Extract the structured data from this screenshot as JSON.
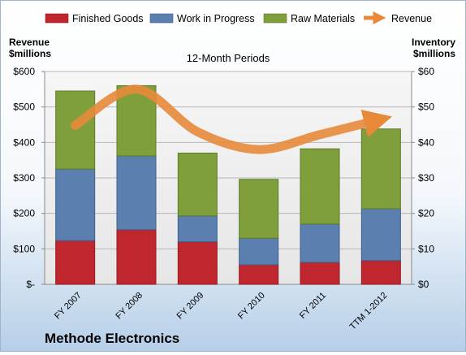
{
  "chart_data": {
    "type": "bar",
    "stacked": true,
    "title": "12-Month Periods",
    "subtitle": "Methode Electronics",
    "categories": [
      "FY 2007",
      "FY 2008",
      "FY 2009",
      "FY 2010",
      "FY 2011",
      "TTM 1-2012"
    ],
    "left_axis": {
      "label_line1": "Revenue",
      "label_line2": "$millions",
      "ylim": [
        0,
        600
      ],
      "tick_labels": [
        "$-",
        "$100",
        "$200",
        "$300",
        "$400",
        "$500",
        "$600"
      ]
    },
    "right_axis": {
      "label_line1": "Inventory",
      "label_line2": "$millions",
      "ylim": [
        0,
        60
      ],
      "tick_labels": [
        "$0",
        "$10",
        "$20",
        "$30",
        "$40",
        "$50",
        "$60"
      ]
    },
    "series": [
      {
        "name": "Finished Goods",
        "type": "bar",
        "axis": "right",
        "color": "#c0262d",
        "values": [
          12.3,
          15.4,
          12.0,
          5.5,
          6.2,
          6.7
        ]
      },
      {
        "name": "Work in Progress",
        "type": "bar",
        "axis": "right",
        "color": "#5b7fae",
        "values": [
          20.2,
          20.8,
          7.3,
          7.5,
          10.8,
          14.6
        ]
      },
      {
        "name": "Raw Materials",
        "type": "bar",
        "axis": "right",
        "color": "#7f9f3c",
        "values": [
          22.0,
          19.8,
          17.7,
          16.6,
          21.2,
          22.5
        ]
      },
      {
        "name": "Revenue",
        "type": "line",
        "axis": "left",
        "color": "#e8893a",
        "values": [
          448,
          550,
          430,
          380,
          422,
          465
        ]
      }
    ],
    "grid": true,
    "legend": "top"
  }
}
